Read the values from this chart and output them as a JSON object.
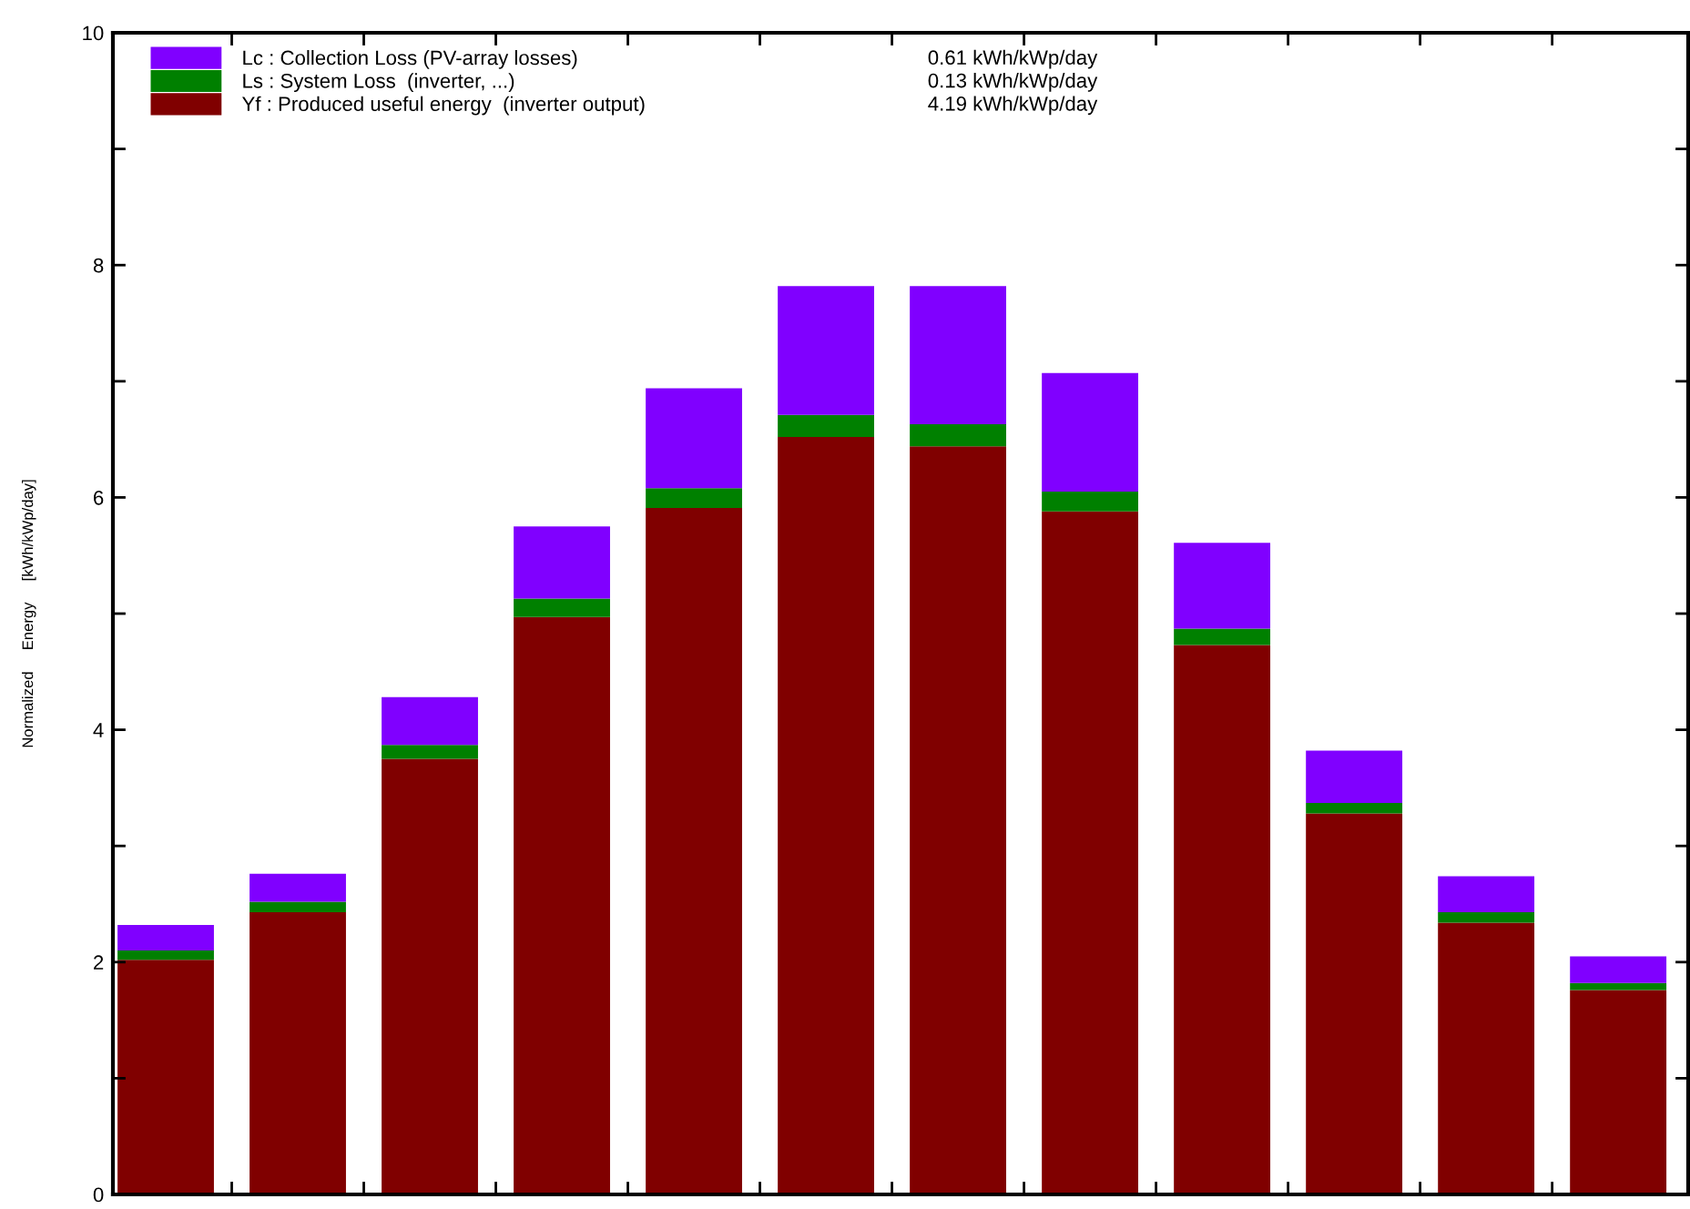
{
  "chart_data": {
    "type": "bar",
    "stacked": true,
    "ylabel": "Normalized     Energy     [kWh/kWp/day]",
    "categories": [
      null,
      null,
      null,
      null,
      null,
      null,
      null,
      null,
      null,
      null,
      null,
      null
    ],
    "series": [
      {
        "name": "Yf : Produced useful energy  (inverter output)",
        "color": "#800000",
        "values": [
          2.02,
          2.43,
          3.75,
          4.97,
          5.91,
          6.52,
          6.44,
          5.88,
          4.73,
          3.28,
          2.34,
          1.76
        ]
      },
      {
        "name": "Ls : System Loss  (inverter, ...)",
        "color": "#008000",
        "values": [
          0.08,
          0.09,
          0.12,
          0.16,
          0.17,
          0.19,
          0.19,
          0.17,
          0.14,
          0.09,
          0.09,
          0.06
        ]
      },
      {
        "name": "Lc : Collection Loss (PV-array losses)",
        "color": "#8000ff",
        "values": [
          0.22,
          0.24,
          0.41,
          0.62,
          0.86,
          1.11,
          1.19,
          1.02,
          0.74,
          0.45,
          0.31,
          0.23
        ]
      }
    ],
    "ylim": [
      0,
      10
    ],
    "yticks": [
      0,
      {
        "value": 1,
        "label": null
      },
      2,
      {
        "value": 3,
        "label": null
      },
      4,
      {
        "value": 5,
        "label": null
      },
      6,
      {
        "value": 7,
        "label": null
      },
      8,
      {
        "value": 9,
        "label": null
      },
      10
    ],
    "legend": "top left",
    "grid": false,
    "annotations": [
      "0.61 kWh/kWp/day",
      "0.13 kWh/kWp/day",
      "4.19 kWh/kWp/day"
    ]
  }
}
